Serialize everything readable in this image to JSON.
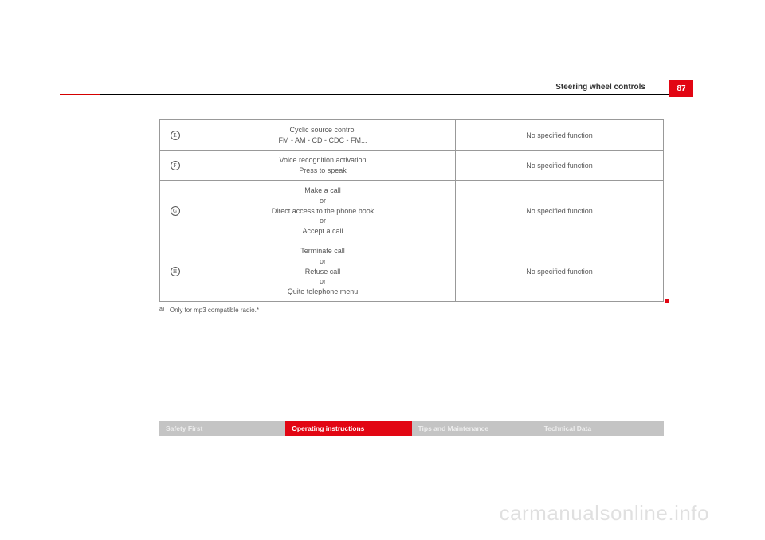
{
  "header": {
    "section_title": "Steering wheel controls",
    "page_number": "87"
  },
  "table": {
    "rows": [
      {
        "key": "E",
        "lines": [
          "Cyclic source control",
          "FM - AM - CD - CDC - FM..."
        ],
        "right": "No specified function"
      },
      {
        "key": "F",
        "lines": [
          "Voice recognition activation",
          "Press to speak"
        ],
        "right": "No specified function"
      },
      {
        "key": "G",
        "lines": [
          "Make a call",
          "or",
          "Direct access to the phone book",
          "or",
          "Accept a call"
        ],
        "right": "No specified function"
      },
      {
        "key": "H",
        "lines": [
          "Terminate call",
          "or",
          "Refuse call",
          "or",
          "Quite telephone menu"
        ],
        "right": "No specified function"
      }
    ]
  },
  "footnote": {
    "marker": "a)",
    "text": "Only for mp3 compatible radio.*"
  },
  "nav": {
    "items": [
      {
        "label": "Safety First",
        "style": "grey"
      },
      {
        "label": "Operating instructions",
        "style": "red"
      },
      {
        "label": "Tips and Maintenance",
        "style": "grey"
      },
      {
        "label": "Technical Data",
        "style": "grey"
      }
    ]
  },
  "watermark": "carmanualsonline.info",
  "colors": {
    "brand_red": "#e20613",
    "grey_tab": "#c4c4c4",
    "grey_tab_text": "#ededed",
    "border": "#999999",
    "text": "#555555"
  }
}
